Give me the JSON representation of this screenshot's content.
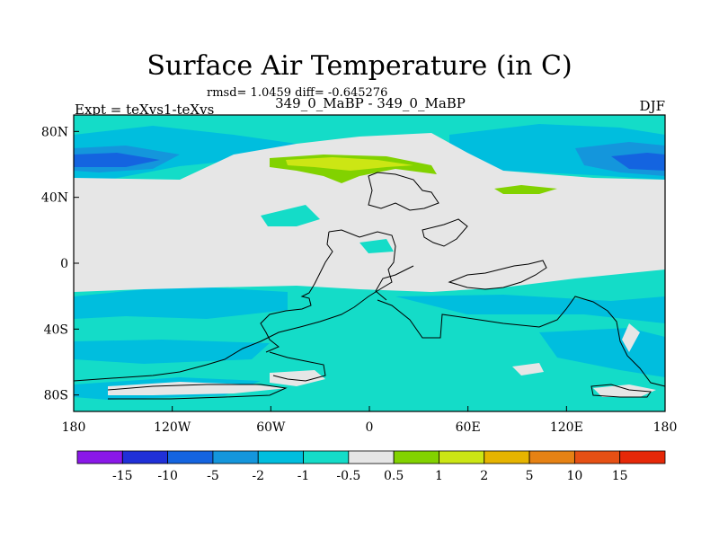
{
  "chart_data": {
    "type": "heatmap",
    "title": "Surface Air Temperature (in C)",
    "stats_text": "rmsd= 1.0459 diff= -0.645276",
    "subtitle": "349_0_MaBP - 349_0_MaBP",
    "left_label": "Expt = teXvs1-teXvs",
    "right_label": "DJF",
    "xlim": [
      -180,
      180
    ],
    "ylim": [
      -90,
      90
    ],
    "x_ticks": [
      "180",
      "120W",
      "60W",
      "0",
      "60E",
      "120E",
      "180"
    ],
    "y_ticks": [
      "80N",
      "40N",
      "0",
      "40S",
      "80S"
    ],
    "colorbar": {
      "labels": [
        "-15",
        "-10",
        "-5",
        "-2",
        "-1",
        "-0.5",
        "0.5",
        "1",
        "2",
        "5",
        "10",
        "15"
      ],
      "colors": [
        "#8a18e8",
        "#2030d8",
        "#1464e0",
        "#1496dc",
        "#00bede",
        "#14dcc8",
        "#e6e6e6",
        "#82d200",
        "#cce614",
        "#e6b400",
        "#e68214",
        "#e65014",
        "#e62808"
      ]
    }
  }
}
